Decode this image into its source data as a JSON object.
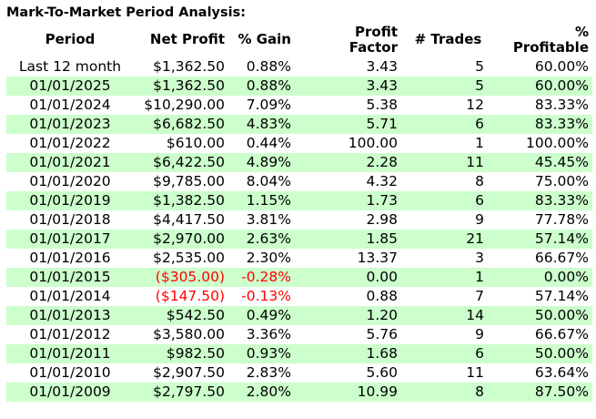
{
  "title": "Mark-To-Market Period Analysis:",
  "table": {
    "columns": [
      {
        "id": "period",
        "label": "Period"
      },
      {
        "id": "net_profit",
        "label": "Net Profit"
      },
      {
        "id": "pct_gain",
        "label": "% Gain"
      },
      {
        "id": "profit_factor",
        "label": "Profit\nFactor"
      },
      {
        "id": "num_trades",
        "label": "# Trades"
      },
      {
        "id": "pct_profitable",
        "label": "%\nProfitable"
      }
    ],
    "rows": [
      {
        "period": "Last 12 month",
        "net_profit": "$1,362.50",
        "pct_gain": "0.88%",
        "profit_factor": "3.43",
        "num_trades": "5",
        "pct_profitable": "60.00%",
        "negative": false
      },
      {
        "period": "01/01/2025",
        "net_profit": "$1,362.50",
        "pct_gain": "0.88%",
        "profit_factor": "3.43",
        "num_trades": "5",
        "pct_profitable": "60.00%",
        "negative": false
      },
      {
        "period": "01/01/2024",
        "net_profit": "$10,290.00",
        "pct_gain": "7.09%",
        "profit_factor": "5.38",
        "num_trades": "12",
        "pct_profitable": "83.33%",
        "negative": false
      },
      {
        "period": "01/01/2023",
        "net_profit": "$6,682.50",
        "pct_gain": "4.83%",
        "profit_factor": "5.71",
        "num_trades": "6",
        "pct_profitable": "83.33%",
        "negative": false
      },
      {
        "period": "01/01/2022",
        "net_profit": "$610.00",
        "pct_gain": "0.44%",
        "profit_factor": "100.00",
        "num_trades": "1",
        "pct_profitable": "100.00%",
        "negative": false
      },
      {
        "period": "01/01/2021",
        "net_profit": "$6,422.50",
        "pct_gain": "4.89%",
        "profit_factor": "2.28",
        "num_trades": "11",
        "pct_profitable": "45.45%",
        "negative": false
      },
      {
        "period": "01/01/2020",
        "net_profit": "$9,785.00",
        "pct_gain": "8.04%",
        "profit_factor": "4.32",
        "num_trades": "8",
        "pct_profitable": "75.00%",
        "negative": false
      },
      {
        "period": "01/01/2019",
        "net_profit": "$1,382.50",
        "pct_gain": "1.15%",
        "profit_factor": "1.73",
        "num_trades": "6",
        "pct_profitable": "83.33%",
        "negative": false
      },
      {
        "period": "01/01/2018",
        "net_profit": "$4,417.50",
        "pct_gain": "3.81%",
        "profit_factor": "2.98",
        "num_trades": "9",
        "pct_profitable": "77.78%",
        "negative": false
      },
      {
        "period": "01/01/2017",
        "net_profit": "$2,970.00",
        "pct_gain": "2.63%",
        "profit_factor": "1.85",
        "num_trades": "21",
        "pct_profitable": "57.14%",
        "negative": false
      },
      {
        "period": "01/01/2016",
        "net_profit": "$2,535.00",
        "pct_gain": "2.30%",
        "profit_factor": "13.37",
        "num_trades": "3",
        "pct_profitable": "66.67%",
        "negative": false
      },
      {
        "period": "01/01/2015",
        "net_profit": "($305.00)",
        "pct_gain": "-0.28%",
        "profit_factor": "0.00",
        "num_trades": "1",
        "pct_profitable": "0.00%",
        "negative": true
      },
      {
        "period": "01/01/2014",
        "net_profit": "($147.50)",
        "pct_gain": "-0.13%",
        "profit_factor": "0.88",
        "num_trades": "7",
        "pct_profitable": "57.14%",
        "negative": true
      },
      {
        "period": "01/01/2013",
        "net_profit": "$542.50",
        "pct_gain": "0.49%",
        "profit_factor": "1.20",
        "num_trades": "14",
        "pct_profitable": "50.00%",
        "negative": false
      },
      {
        "period": "01/01/2012",
        "net_profit": "$3,580.00",
        "pct_gain": "3.36%",
        "profit_factor": "5.76",
        "num_trades": "9",
        "pct_profitable": "66.67%",
        "negative": false
      },
      {
        "period": "01/01/2011",
        "net_profit": "$982.50",
        "pct_gain": "0.93%",
        "profit_factor": "1.68",
        "num_trades": "6",
        "pct_profitable": "50.00%",
        "negative": false
      },
      {
        "period": "01/01/2010",
        "net_profit": "$2,907.50",
        "pct_gain": "2.83%",
        "profit_factor": "5.60",
        "num_trades": "11",
        "pct_profitable": "63.64%",
        "negative": false
      },
      {
        "period": "01/01/2009",
        "net_profit": "$2,797.50",
        "pct_gain": "2.80%",
        "profit_factor": "10.99",
        "num_trades": "8",
        "pct_profitable": "87.50%",
        "negative": false
      }
    ]
  },
  "colors": {
    "highlight_row_bg": "#ccffcc",
    "negative_text": "#ff0000",
    "text": "#000000",
    "background": "#ffffff"
  }
}
